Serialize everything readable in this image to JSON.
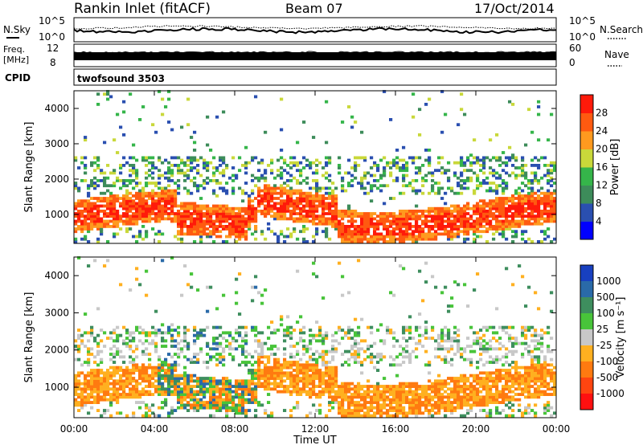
{
  "header": {
    "station": "Rankin Inlet (fitACF)",
    "beam": "Beam 07",
    "date": "17/Oct/2014"
  },
  "noise_panel": {
    "left_label": "N.Sky",
    "right_label": "N.Search",
    "left_ticks": [
      "10^5",
      "10^0"
    ],
    "right_ticks": [
      "10^5",
      "10^0"
    ]
  },
  "freq_panel": {
    "left_label_1": "Freq.",
    "left_label_2": "[MHz]",
    "right_label": "Nave",
    "left_ticks": [
      "12",
      "8"
    ],
    "right_ticks": [
      "60",
      "0"
    ]
  },
  "cpid_panel": {
    "label": "CPID",
    "value": "twofsound 3503"
  },
  "chart_data": [
    {
      "type": "heatmap",
      "title": "",
      "ylabel": "Slant Range [km]",
      "ylim": [
        180,
        4500
      ],
      "yticks": [
        1000,
        2000,
        3000,
        4000
      ],
      "colorbar": {
        "label": "Power [dB]",
        "range": [
          0,
          32
        ],
        "ticks": [
          4,
          8,
          12,
          16,
          20,
          24,
          28
        ],
        "colors": [
          "#0000ff",
          "#2a4fb0",
          "#3d8c5a",
          "#35b54a",
          "#c9d83a",
          "#ff9a1f",
          "#ff5a10",
          "#ff1a0a"
        ]
      }
    },
    {
      "type": "heatmap",
      "title": "",
      "ylabel": "Slant Range [km]",
      "xlabel": "Time UT",
      "ylim": [
        180,
        4500
      ],
      "yticks": [
        1000,
        2000,
        3000,
        4000
      ],
      "xticks": [
        "00:00",
        "04:00",
        "08:00",
        "12:00",
        "16:00",
        "20:00",
        "00:00"
      ],
      "colorbar": {
        "label": "Velocity [m s⁻¹]",
        "ticks": [
          "1000",
          "500",
          "100",
          "25",
          "-25",
          "-100",
          "-500",
          "-1000"
        ],
        "colors": [
          "#1840c0",
          "#2a6aa8",
          "#3e8e5e",
          "#48c43a",
          "#c8c8c8",
          "#ffb020",
          "#ff7a10",
          "#ff4510",
          "#ff1010"
        ]
      }
    }
  ]
}
